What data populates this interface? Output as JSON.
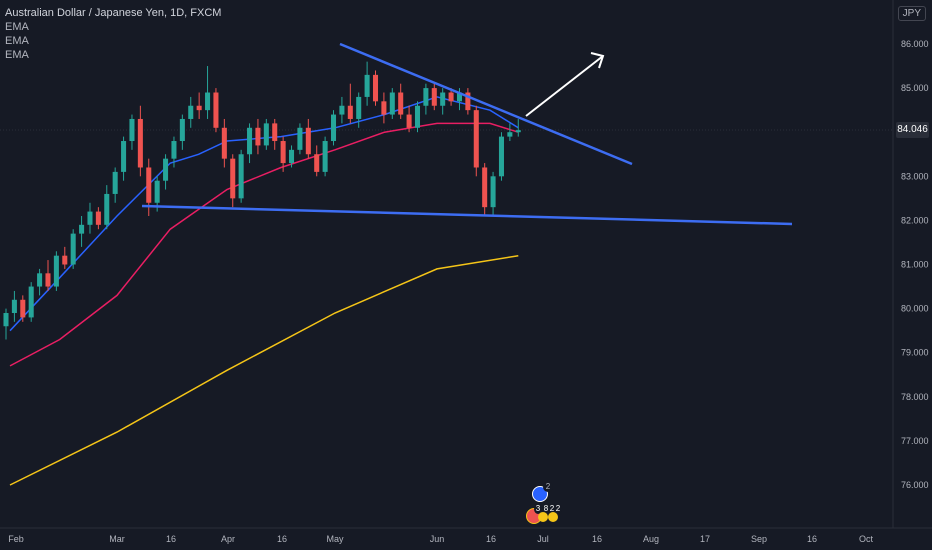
{
  "header": {
    "title": "Australian Dollar / Japanese Yen, 1D, FXCM",
    "indicators": [
      "EMA",
      "EMA",
      "EMA"
    ],
    "currency": "JPY",
    "last_price": "84.046"
  },
  "events": {
    "count_top": "2",
    "labels": [
      "3",
      "8",
      "2",
      "2"
    ]
  },
  "colors": {
    "background": "#161a25",
    "bull": "#26a69a",
    "bear": "#ef5350",
    "ema_fast": "#2962ff",
    "ema_mid": "#e91e63",
    "ema_slow": "#f5c518",
    "trendline": "#3d6df2",
    "arrow": "#ffffff"
  },
  "chart_data": {
    "type": "candlestick",
    "x_ticks": [
      "Feb",
      "Mar",
      "16",
      "Apr",
      "16",
      "May",
      "Jun",
      "16",
      "Jul",
      "16",
      "Aug",
      "17",
      "Sep",
      "16",
      "Oct"
    ],
    "y_ticks": [
      "86.000",
      "85.000",
      "84.000",
      "83.000",
      "82.000",
      "81.000",
      "80.000",
      "79.000",
      "78.000",
      "77.000",
      "76.000"
    ],
    "ylim": [
      75.3,
      86.3
    ],
    "grid": false,
    "last_price": 84.046,
    "series": [
      {
        "name": "EMA",
        "color": "#2962ff",
        "points": [
          [
            "Feb 1",
            79.5
          ],
          [
            "Feb 14",
            80.7
          ],
          [
            "Mar 1",
            82.1
          ],
          [
            "Mar 16",
            83.3
          ],
          [
            "Mar 24",
            83.5
          ],
          [
            "Apr 1",
            83.8
          ],
          [
            "Apr 16",
            83.9
          ],
          [
            "May 1",
            84.1
          ],
          [
            "May 16",
            84.4
          ],
          [
            "Jun 1",
            84.8
          ],
          [
            "Jun 16",
            84.5
          ],
          [
            "Jun 24",
            84.1
          ]
        ]
      },
      {
        "name": "EMA",
        "color": "#e91e63",
        "points": [
          [
            "Feb 1",
            78.7
          ],
          [
            "Feb 14",
            79.3
          ],
          [
            "Mar 1",
            80.3
          ],
          [
            "Mar 16",
            81.8
          ],
          [
            "Apr 1",
            82.7
          ],
          [
            "Apr 16",
            83.2
          ],
          [
            "May 1",
            83.6
          ],
          [
            "May 16",
            84.0
          ],
          [
            "Jun 1",
            84.2
          ],
          [
            "Jun 16",
            84.2
          ],
          [
            "Jun 24",
            84.0
          ]
        ]
      },
      {
        "name": "EMA",
        "color": "#f5c518",
        "points": [
          [
            "Feb 1",
            76.0
          ],
          [
            "Mar 1",
            77.2
          ],
          [
            "Apr 1",
            78.6
          ],
          [
            "May 1",
            79.9
          ],
          [
            "Jun 1",
            80.9
          ],
          [
            "Jun 24",
            81.2
          ]
        ]
      }
    ],
    "candles_ohlc": [
      [
        79.6,
        80.0,
        79.3,
        79.9
      ],
      [
        79.9,
        80.4,
        79.7,
        80.2
      ],
      [
        80.2,
        80.3,
        79.7,
        79.8
      ],
      [
        79.8,
        80.6,
        79.7,
        80.5
      ],
      [
        80.5,
        80.9,
        80.3,
        80.8
      ],
      [
        80.8,
        81.1,
        80.4,
        80.5
      ],
      [
        80.5,
        81.3,
        80.4,
        81.2
      ],
      [
        81.2,
        81.4,
        80.9,
        81.0
      ],
      [
        81.0,
        81.8,
        80.9,
        81.7
      ],
      [
        81.7,
        82.1,
        81.4,
        81.9
      ],
      [
        81.9,
        82.4,
        81.7,
        82.2
      ],
      [
        82.2,
        82.3,
        81.8,
        81.9
      ],
      [
        81.9,
        82.8,
        81.8,
        82.6
      ],
      [
        82.6,
        83.2,
        82.4,
        83.1
      ],
      [
        83.1,
        83.9,
        82.9,
        83.8
      ],
      [
        83.8,
        84.4,
        83.6,
        84.3
      ],
      [
        84.3,
        84.6,
        83.0,
        83.2
      ],
      [
        83.2,
        83.4,
        82.1,
        82.4
      ],
      [
        82.4,
        83.0,
        82.2,
        82.9
      ],
      [
        82.9,
        83.5,
        82.7,
        83.4
      ],
      [
        83.4,
        83.9,
        83.2,
        83.8
      ],
      [
        83.8,
        84.4,
        83.6,
        84.3
      ],
      [
        84.3,
        84.8,
        84.1,
        84.6
      ],
      [
        84.6,
        84.9,
        84.3,
        84.5
      ],
      [
        84.5,
        85.5,
        84.3,
        84.9
      ],
      [
        84.9,
        85.0,
        84.0,
        84.1
      ],
      [
        84.1,
        84.3,
        83.2,
        83.4
      ],
      [
        83.4,
        83.5,
        82.3,
        82.5
      ],
      [
        82.5,
        83.6,
        82.4,
        83.5
      ],
      [
        83.5,
        84.2,
        83.3,
        84.1
      ],
      [
        84.1,
        84.3,
        83.5,
        83.7
      ],
      [
        83.7,
        84.3,
        83.6,
        84.2
      ],
      [
        84.2,
        84.3,
        83.6,
        83.8
      ],
      [
        83.8,
        83.9,
        83.1,
        83.3
      ],
      [
        83.3,
        83.7,
        83.2,
        83.6
      ],
      [
        83.6,
        84.2,
        83.5,
        84.1
      ],
      [
        84.1,
        84.3,
        83.4,
        83.5
      ],
      [
        83.5,
        83.7,
        83.0,
        83.1
      ],
      [
        83.1,
        83.9,
        83.0,
        83.8
      ],
      [
        83.8,
        84.5,
        83.7,
        84.4
      ],
      [
        84.4,
        84.8,
        84.2,
        84.6
      ],
      [
        84.6,
        85.1,
        84.2,
        84.3
      ],
      [
        84.3,
        84.9,
        84.1,
        84.8
      ],
      [
        84.8,
        85.6,
        84.6,
        85.3
      ],
      [
        85.3,
        85.4,
        84.6,
        84.7
      ],
      [
        84.7,
        84.9,
        84.2,
        84.4
      ],
      [
        84.4,
        85.0,
        84.3,
        84.9
      ],
      [
        84.9,
        85.1,
        84.3,
        84.4
      ],
      [
        84.4,
        84.6,
        84.0,
        84.1
      ],
      [
        84.1,
        84.7,
        84.0,
        84.6
      ],
      [
        84.6,
        85.1,
        84.4,
        85.0
      ],
      [
        85.0,
        85.1,
        84.5,
        84.6
      ],
      [
        84.6,
        85.0,
        84.4,
        84.9
      ],
      [
        84.9,
        85.0,
        84.6,
        84.7
      ],
      [
        84.7,
        85.0,
        84.5,
        84.9
      ],
      [
        84.9,
        85.0,
        84.4,
        84.5
      ],
      [
        84.5,
        84.6,
        83.0,
        83.2
      ],
      [
        83.2,
        83.3,
        82.1,
        82.3
      ],
      [
        82.3,
        83.1,
        82.1,
        83.0
      ],
      [
        83.0,
        84.0,
        82.9,
        83.9
      ],
      [
        83.9,
        84.2,
        83.8,
        84.0
      ],
      [
        84.0,
        84.3,
        83.9,
        84.046
      ]
    ]
  }
}
